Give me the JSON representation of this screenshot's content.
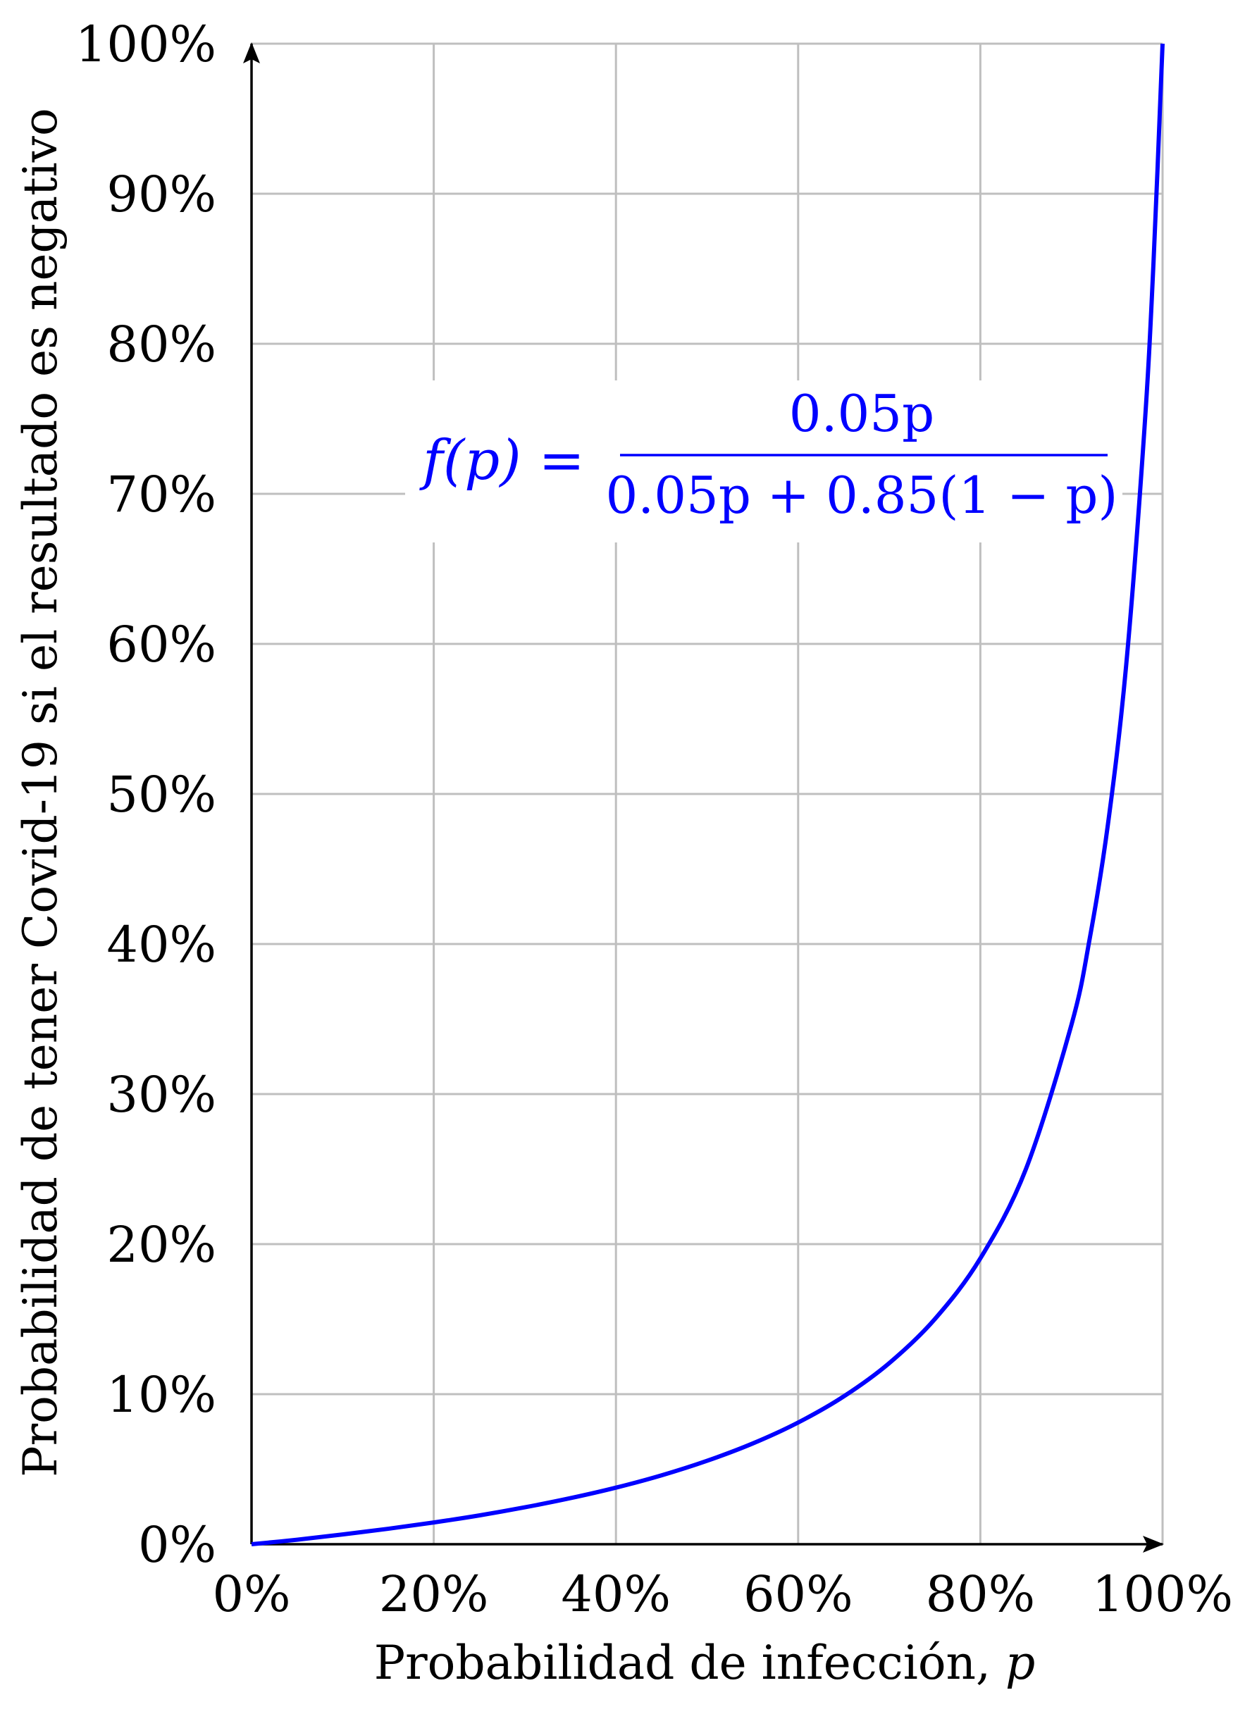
{
  "chart_data": {
    "type": "line",
    "xlabel": "Probabilidad de infección, ",
    "xlabel_var": "p",
    "ylabel": "Probabilidad de tener Covid-19 si el resultado es negativo",
    "xlim": [
      0,
      1
    ],
    "ylim": [
      0,
      1
    ],
    "x_ticks": [
      "0%",
      "20%",
      "40%",
      "60%",
      "80%",
      "100%"
    ],
    "y_ticks": [
      "0%",
      "10%",
      "20%",
      "30%",
      "40%",
      "50%",
      "60%",
      "70%",
      "80%",
      "90%",
      "100%"
    ],
    "grid": true,
    "annotation": {
      "lhs": "f(p) =",
      "numerator": "0.05p",
      "denominator": "0.05p + 0.85(1 − p)",
      "color": "#0000ff"
    },
    "series": [
      {
        "color": "#0000ff",
        "x": [
          0,
          0.05,
          0.1,
          0.15,
          0.2,
          0.25,
          0.3,
          0.35,
          0.4,
          0.45,
          0.5,
          0.55,
          0.6,
          0.65,
          0.7,
          0.75,
          0.8,
          0.85,
          0.9,
          0.92,
          0.94,
          0.96,
          0.98,
          0.99,
          1.0
        ],
        "y": [
          0,
          0.003,
          0.0065,
          0.0103,
          0.0145,
          0.0192,
          0.0246,
          0.0307,
          0.0377,
          0.0459,
          0.0556,
          0.0671,
          0.0811,
          0.0985,
          0.1207,
          0.15,
          0.1905,
          0.25,
          0.3462,
          0.4035,
          0.4796,
          0.5854,
          0.7424,
          0.8534,
          1.0
        ]
      }
    ]
  }
}
